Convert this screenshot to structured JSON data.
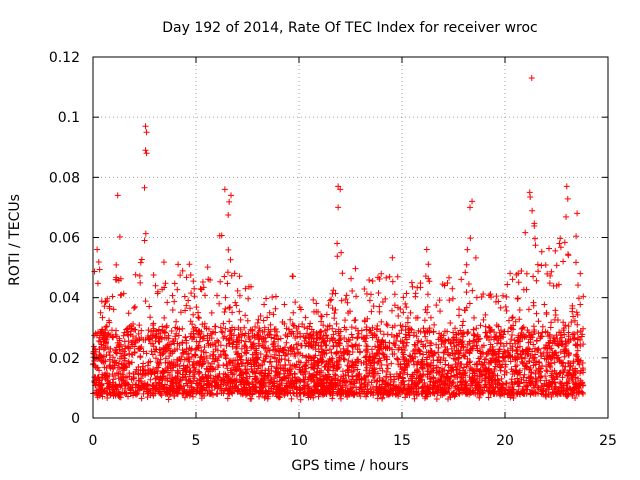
{
  "chart_data": {
    "type": "scatter",
    "title": "Day 192 of 2014, Rate Of TEC Index for receiver wroc",
    "xlabel": "GPS time / hours",
    "ylabel": "ROTI / TECUs",
    "xlim": [
      0,
      25
    ],
    "ylim": [
      0,
      0.12
    ],
    "x_ticks": [
      0,
      5,
      10,
      15,
      20,
      25
    ],
    "y_ticks": [
      0,
      0.02,
      0.04,
      0.06,
      0.08,
      0.1,
      0.12
    ],
    "x_tick_labels": [
      "0",
      "5",
      "10",
      "15",
      "20",
      "25"
    ],
    "y_tick_labels": [
      "0",
      "0.02",
      "0.04",
      "0.06",
      "0.08",
      "0.1",
      "0.12"
    ],
    "grid": true,
    "marker": "plus",
    "color": "#ff0000",
    "data_range_x": [
      0,
      23.8
    ],
    "baseline_band": [
      0.008,
      0.03
    ],
    "envelope": [
      [
        0.0,
        0.05
      ],
      [
        0.2,
        0.056
      ],
      [
        0.5,
        0.045
      ],
      [
        0.8,
        0.04
      ],
      [
        1.1,
        0.045
      ],
      [
        1.2,
        0.074
      ],
      [
        1.5,
        0.042
      ],
      [
        1.8,
        0.04
      ],
      [
        2.1,
        0.05
      ],
      [
        2.3,
        0.065
      ],
      [
        2.55,
        0.097
      ],
      [
        2.7,
        0.075
      ],
      [
        3.0,
        0.05
      ],
      [
        3.3,
        0.055
      ],
      [
        3.6,
        0.05
      ],
      [
        4.0,
        0.052
      ],
      [
        4.4,
        0.055
      ],
      [
        4.8,
        0.05
      ],
      [
        5.2,
        0.05
      ],
      [
        5.5,
        0.058
      ],
      [
        5.8,
        0.052
      ],
      [
        6.1,
        0.055
      ],
      [
        6.3,
        0.076
      ],
      [
        6.6,
        0.075
      ],
      [
        6.9,
        0.05
      ],
      [
        7.2,
        0.05
      ],
      [
        7.6,
        0.045
      ],
      [
        8.0,
        0.042
      ],
      [
        8.5,
        0.04
      ],
      [
        9.0,
        0.042
      ],
      [
        9.5,
        0.045
      ],
      [
        9.8,
        0.05
      ],
      [
        10.2,
        0.04
      ],
      [
        10.8,
        0.04
      ],
      [
        11.3,
        0.035
      ],
      [
        11.7,
        0.045
      ],
      [
        11.95,
        0.077
      ],
      [
        12.2,
        0.04
      ],
      [
        12.6,
        0.05
      ],
      [
        13.0,
        0.052
      ],
      [
        13.5,
        0.045
      ],
      [
        14.0,
        0.05
      ],
      [
        14.5,
        0.055
      ],
      [
        15.0,
        0.045
      ],
      [
        15.5,
        0.05
      ],
      [
        16.0,
        0.052
      ],
      [
        16.2,
        0.056
      ],
      [
        16.6,
        0.05
      ],
      [
        17.0,
        0.045
      ],
      [
        17.5,
        0.05
      ],
      [
        18.0,
        0.05
      ],
      [
        18.4,
        0.072
      ],
      [
        18.8,
        0.045
      ],
      [
        19.3,
        0.042
      ],
      [
        19.8,
        0.04
      ],
      [
        20.2,
        0.048
      ],
      [
        20.6,
        0.05
      ],
      [
        21.0,
        0.065
      ],
      [
        21.25,
        0.075
      ],
      [
        21.6,
        0.06
      ],
      [
        22.0,
        0.055
      ],
      [
        22.4,
        0.06
      ],
      [
        22.8,
        0.065
      ],
      [
        23.1,
        0.077
      ],
      [
        23.5,
        0.068
      ],
      [
        23.8,
        0.05
      ]
    ],
    "outliers": [
      {
        "x": 21.3,
        "y": 0.113
      },
      {
        "x": 2.55,
        "y": 0.097
      },
      {
        "x": 2.6,
        "y": 0.095
      },
      {
        "x": 2.55,
        "y": 0.089
      },
      {
        "x": 2.6,
        "y": 0.088
      },
      {
        "x": 11.9,
        "y": 0.077
      },
      {
        "x": 12.0,
        "y": 0.076
      },
      {
        "x": 6.4,
        "y": 0.076
      },
      {
        "x": 23.0,
        "y": 0.077
      },
      {
        "x": 1.2,
        "y": 0.074
      },
      {
        "x": 6.7,
        "y": 0.074
      },
      {
        "x": 18.4,
        "y": 0.072
      },
      {
        "x": 18.3,
        "y": 0.07
      },
      {
        "x": 21.2,
        "y": 0.075
      },
      {
        "x": 23.5,
        "y": 0.068
      },
      {
        "x": 11.9,
        "y": 0.07
      },
      {
        "x": 11.85,
        "y": 0.058
      },
      {
        "x": 16.2,
        "y": 0.056
      },
      {
        "x": 0.2,
        "y": 0.056
      }
    ]
  }
}
